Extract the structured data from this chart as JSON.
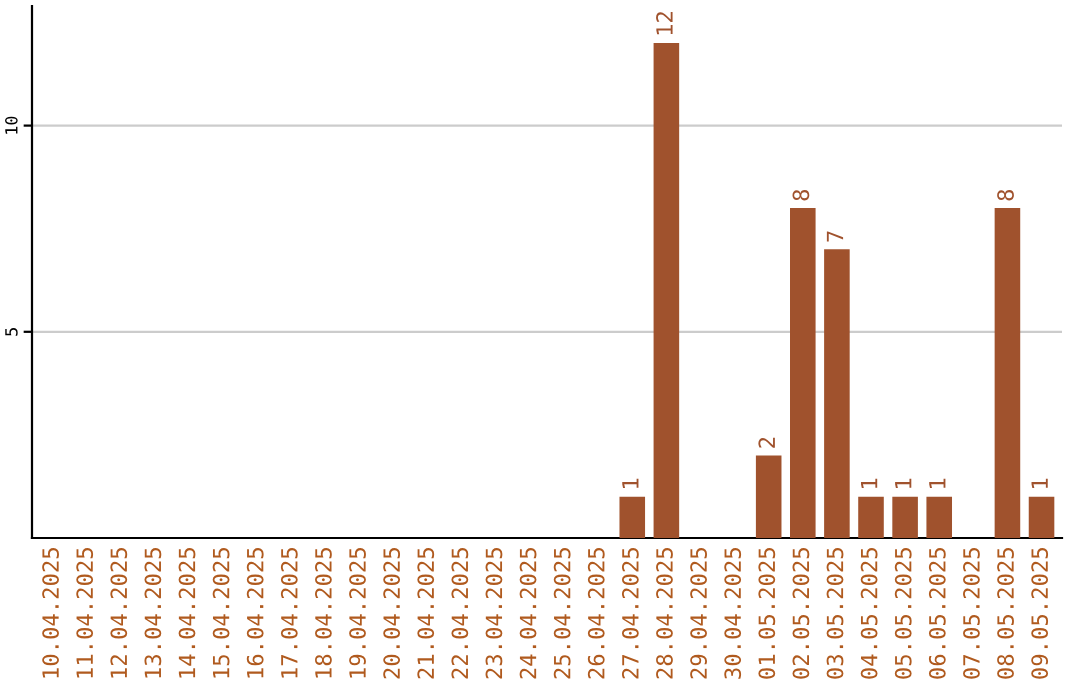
{
  "chart_data": {
    "type": "bar",
    "categories": [
      "10.04.2025",
      "11.04.2025",
      "12.04.2025",
      "13.04.2025",
      "14.04.2025",
      "15.04.2025",
      "16.04.2025",
      "17.04.2025",
      "18.04.2025",
      "19.04.2025",
      "20.04.2025",
      "21.04.2025",
      "22.04.2025",
      "23.04.2025",
      "24.04.2025",
      "25.04.2025",
      "26.04.2025",
      "27.04.2025",
      "28.04.2025",
      "29.04.2025",
      "30.04.2025",
      "01.05.2025",
      "02.05.2025",
      "03.05.2025",
      "04.05.2025",
      "05.05.2025",
      "06.05.2025",
      "07.05.2025",
      "08.05.2025",
      "09.05.2025"
    ],
    "values": [
      0,
      0,
      0,
      0,
      0,
      0,
      0,
      0,
      0,
      0,
      0,
      0,
      0,
      0,
      0,
      0,
      0,
      1,
      12,
      0,
      0,
      2,
      8,
      7,
      1,
      1,
      1,
      0,
      8,
      1
    ],
    "value_labels": [
      null,
      null,
      null,
      null,
      null,
      null,
      null,
      null,
      null,
      null,
      null,
      null,
      null,
      null,
      null,
      null,
      null,
      "1",
      "12",
      null,
      null,
      "2",
      "8",
      "7",
      "1",
      "1",
      "1",
      null,
      "8",
      "1"
    ],
    "color": "#a0522d",
    "ylim": [
      0,
      12.9
    ],
    "yticks": [
      5,
      10
    ],
    "grid": "y",
    "legend": false
  }
}
